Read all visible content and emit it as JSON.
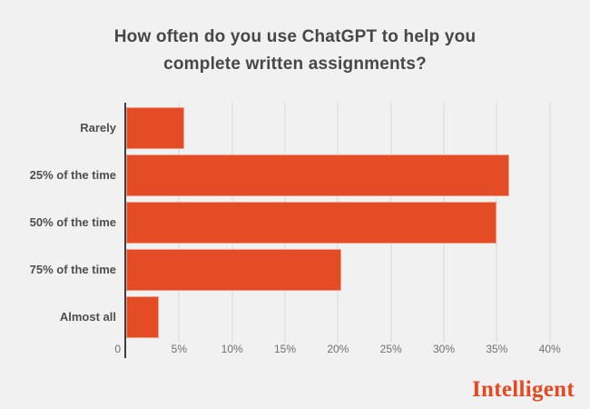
{
  "page": {
    "background_color": "#f1f1f2"
  },
  "title": {
    "lines": [
      "How often do you use ChatGPT to help you",
      "complete written assignments?"
    ]
  },
  "brand": {
    "name": "Intelligent",
    "color": "#e8481f"
  },
  "chart_data": {
    "type": "bar",
    "orientation": "horizontal",
    "title": "How often do you use ChatGPT to help you complete written assignments?",
    "categories": [
      "Rarely",
      "25% of the time",
      "50% of the time",
      "75% of the time",
      "Almost all"
    ],
    "values": [
      5.5,
      36.2,
      35,
      20.3,
      3.1
    ],
    "unit": "%",
    "xlabel": "",
    "ylabel": "",
    "x_ticks": [
      "0",
      "5%",
      "10%",
      "15%",
      "20%",
      "25%",
      "30%",
      "35%",
      "40%"
    ],
    "x_tick_step": 5,
    "xlim": [
      0,
      43.6
    ],
    "grid": true,
    "legend": "none",
    "bar_color": "#e34c25",
    "gridline_color": "#e4e4e4",
    "axis_line_color": "#3d3d3d"
  }
}
